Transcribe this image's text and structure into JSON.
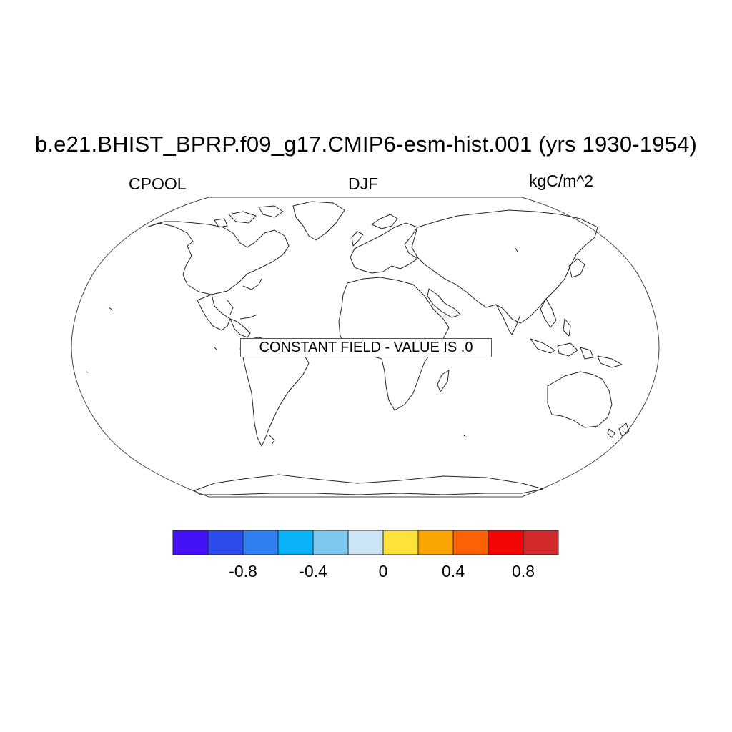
{
  "title": "b.e21.BHIST_BPRP.f09_g17.CMIP6-esm-hist.001 (yrs 1930-1954)",
  "left_string": "CPOOL",
  "center_string": "DJF",
  "right_string": "kgC/m^2",
  "constant_field_label": "CONSTANT FIELD - VALUE IS .0",
  "map": {
    "projection": "Robinson",
    "coastlines": true,
    "field_value": 0
  },
  "colorbar": {
    "colors": [
      "#4410f6",
      "#2d4be8",
      "#2f7ff1",
      "#0ab3f8",
      "#7ec8f0",
      "#cce6f6",
      "#fde23a",
      "#fba505",
      "#fc6204",
      "#f40505",
      "#d32a2e"
    ],
    "tick_labels": [
      "-0.8",
      "-0.4",
      "0",
      "0.4",
      "0.8"
    ]
  }
}
